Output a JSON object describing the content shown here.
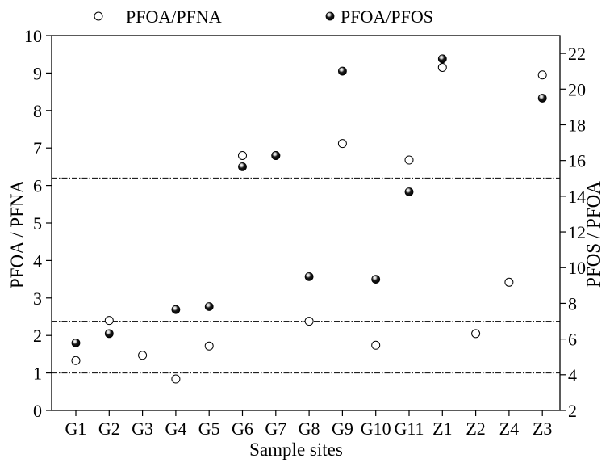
{
  "chart_data": {
    "type": "scatter",
    "xlabel": "Sample sites",
    "ylabel_left": "PFOA / PFNA",
    "ylabel_right": "PFOS / PFOA",
    "categories": [
      "G1",
      "G2",
      "G3",
      "G4",
      "G5",
      "G6",
      "G7",
      "G8",
      "G9",
      "G10",
      "G11",
      "Z1",
      "Z2",
      "Z4",
      "Z3"
    ],
    "ylim_left": [
      0,
      10
    ],
    "yticks_left": [
      "0",
      "1",
      "2",
      "3",
      "4",
      "5",
      "6",
      "7",
      "8",
      "9",
      "10"
    ],
    "ylim_right": [
      2,
      23
    ],
    "yticks_right": [
      "2",
      "4",
      "6",
      "8",
      "10",
      "12",
      "14",
      "16",
      "18",
      "20",
      "22"
    ],
    "legend_position": "top",
    "series": [
      {
        "name": "PFOA/PFNA",
        "axis": "left",
        "marker": "open-circle",
        "values": [
          1.33,
          2.4,
          1.47,
          0.84,
          1.72,
          6.8,
          6.8,
          2.38,
          7.12,
          1.74,
          6.68,
          9.15,
          2.05,
          3.42,
          8.95
        ]
      },
      {
        "name": "PFOA/PFOS",
        "axis": "left",
        "marker": "filled-circle",
        "values": [
          1.8,
          2.05,
          null,
          2.69,
          2.77,
          6.5,
          6.8,
          3.57,
          9.05,
          3.5,
          5.83,
          9.38,
          null,
          null,
          8.33
        ]
      }
    ],
    "reference_lines": [
      {
        "axis": "left",
        "value": 1.0
      },
      {
        "axis": "left",
        "value": 2.38
      },
      {
        "axis": "left",
        "value": 6.2
      }
    ],
    "colors": {
      "axis": "#000000",
      "marker_edge": "#000000",
      "marker_fill_filled": "#000000",
      "marker_fill_open": "#ffffff",
      "reference_line": "#000000"
    }
  }
}
